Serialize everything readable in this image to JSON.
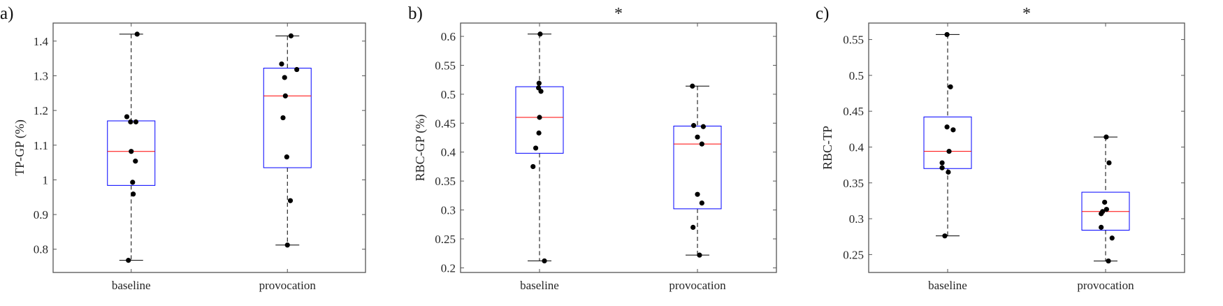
{
  "colors": {
    "box": "#0000ff",
    "median": "#ff0000",
    "whisker": "#000000",
    "axis": "#555555",
    "points": "#000000"
  },
  "chart_data": [
    {
      "type": "box",
      "panel_label": "a)",
      "significance": "",
      "ylabel": "TP-GP (%)",
      "categories": [
        "baseline",
        "provocation"
      ],
      "xlim": [
        0.5,
        2.5
      ],
      "ylim": [
        0.733,
        1.452
      ],
      "yticks": [
        0.8,
        0.9,
        1.0,
        1.1,
        1.2,
        1.3,
        1.4
      ],
      "ytick_labels": [
        "0.8",
        "0.9",
        "1",
        "1.1",
        "1.2",
        "1.3",
        "1.4"
      ],
      "boxes": [
        {
          "min": 0.768,
          "q1": 0.984,
          "median": 1.082,
          "q3": 1.17,
          "max": 1.42
        },
        {
          "min": 0.812,
          "q1": 1.035,
          "median": 1.242,
          "q3": 1.322,
          "max": 1.415
        }
      ],
      "points": [
        {
          "values": [
            1.42,
            1.182,
            1.167,
            1.167,
            1.082,
            1.054,
            0.993,
            0.959,
            0.768
          ],
          "jitter": [
            0.038,
            -0.028,
            -0.004,
            0.03,
            0,
            0.027,
            0.009,
            0.013,
            -0.018
          ]
        },
        {
          "values": [
            1.415,
            1.334,
            1.318,
            1.295,
            1.242,
            1.179,
            1.066,
            0.94,
            0.812
          ],
          "jitter": [
            0.023,
            -0.037,
            0.06,
            -0.018,
            -0.013,
            -0.028,
            -0.004,
            0.019,
            0
          ]
        }
      ]
    },
    {
      "type": "box",
      "panel_label": "b)",
      "significance": "*",
      "ylabel": "RBC-GP (%)",
      "categories": [
        "baseline",
        "provocation"
      ],
      "xlim": [
        0.5,
        2.5
      ],
      "ylim": [
        0.192,
        0.623
      ],
      "yticks": [
        0.2,
        0.25,
        0.3,
        0.35,
        0.4,
        0.45,
        0.5,
        0.55,
        0.6
      ],
      "ytick_labels": [
        "0.2",
        "0.25",
        "0.3",
        "0.35",
        "0.4",
        "0.45",
        "0.5",
        "0.55",
        "0.6"
      ],
      "boxes": [
        {
          "min": 0.212,
          "q1": 0.398,
          "median": 0.46,
          "q3": 0.513,
          "max": 0.604
        },
        {
          "min": 0.222,
          "q1": 0.302,
          "median": 0.414,
          "q3": 0.445,
          "max": 0.514
        }
      ],
      "points": [
        {
          "values": [
            0.604,
            0.519,
            0.511,
            0.505,
            0.46,
            0.433,
            0.407,
            0.375,
            0.212
          ],
          "jitter": [
            0.004,
            -0.003,
            -0.006,
            0.009,
            0,
            -0.004,
            -0.024,
            -0.041,
            0.031
          ]
        },
        {
          "values": [
            0.514,
            0.446,
            0.444,
            0.426,
            0.414,
            0.327,
            0.312,
            0.27,
            0.222
          ],
          "jitter": [
            -0.032,
            -0.024,
            0.037,
            0,
            0.028,
            0,
            0.028,
            -0.028,
            0.013
          ]
        }
      ]
    },
    {
      "type": "box",
      "panel_label": "c)",
      "significance": "*",
      "ylabel": "RBC-TP",
      "categories": [
        "baseline",
        "provocation"
      ],
      "xlim": [
        0.5,
        2.5
      ],
      "ylim": [
        0.225,
        0.573
      ],
      "yticks": [
        0.25,
        0.3,
        0.35,
        0.4,
        0.45,
        0.5,
        0.55
      ],
      "ytick_labels": [
        "0.25",
        "0.3",
        "0.35",
        "0.4",
        "0.45",
        "0.5",
        "0.55"
      ],
      "boxes": [
        {
          "min": 0.276,
          "q1": 0.37,
          "median": 0.394,
          "q3": 0.442,
          "max": 0.557
        },
        {
          "min": 0.241,
          "q1": 0.284,
          "median": 0.31,
          "q3": 0.337,
          "max": 0.414
        }
      ],
      "points": [
        {
          "values": [
            0.557,
            0.484,
            0.428,
            0.424,
            0.394,
            0.378,
            0.371,
            0.365,
            0.276
          ],
          "jitter": [
            -0.004,
            0.018,
            -0.004,
            0.035,
            0.009,
            -0.035,
            -0.035,
            0.004,
            -0.018
          ]
        },
        {
          "values": [
            0.414,
            0.378,
            0.323,
            0.313,
            0.31,
            0.307,
            0.288,
            0.273,
            0.241
          ],
          "jitter": [
            0.004,
            0.022,
            -0.006,
            0.006,
            -0.019,
            -0.028,
            -0.028,
            0.041,
            0.018
          ]
        }
      ]
    }
  ]
}
